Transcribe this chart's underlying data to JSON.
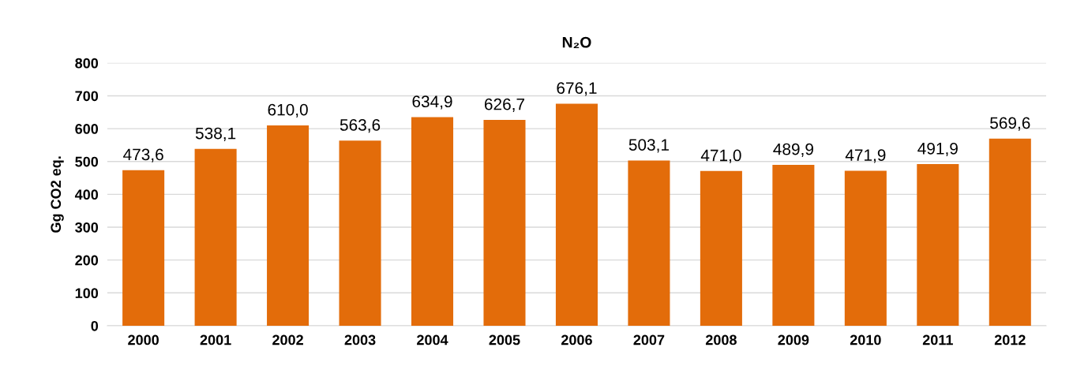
{
  "chart_data": {
    "type": "bar",
    "title": "N₂O",
    "ylabel": "Gg CO2 eq.",
    "categories": [
      "2000",
      "2001",
      "2002",
      "2003",
      "2004",
      "2005",
      "2006",
      "2007",
      "2008",
      "2009",
      "2010",
      "2011",
      "2012"
    ],
    "values": [
      473.6,
      538.1,
      610.0,
      563.6,
      634.9,
      626.7,
      676.1,
      503.1,
      471.0,
      489.9,
      471.9,
      491.9,
      569.6
    ],
    "value_labels": [
      "473,6",
      "538,1",
      "610,0",
      "563,6",
      "634,9",
      "626,7",
      "676,1",
      "503,1",
      "471,0",
      "489,9",
      "471,9",
      "491,9",
      "569,6"
    ],
    "color": "#e36c0a",
    "ylim": [
      0,
      800
    ],
    "yticks": [
      0,
      100,
      200,
      300,
      400,
      500,
      600,
      700,
      800
    ],
    "grid": "y",
    "legend": false
  }
}
